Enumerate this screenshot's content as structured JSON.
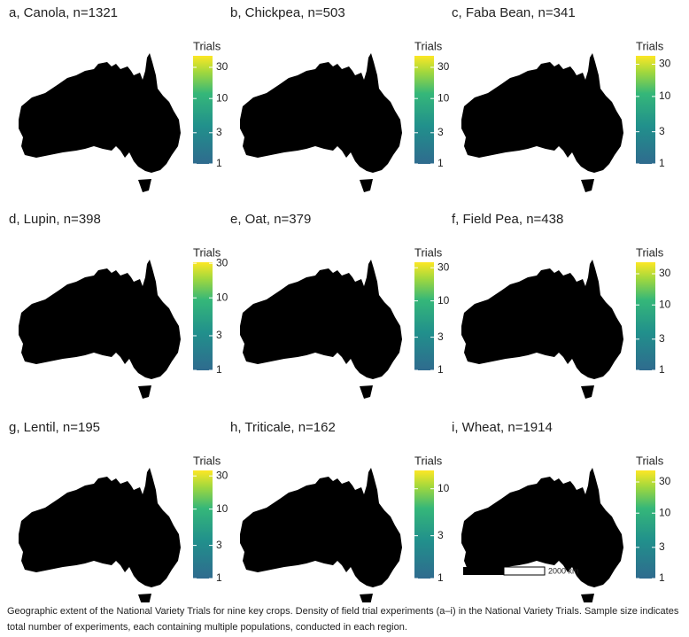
{
  "chart_data": [
    {
      "type": "map",
      "title": "a, Canola, n=1321",
      "legend_title": "Trials",
      "log_scale": true,
      "clim": [
        1,
        45
      ],
      "cticks": [
        1,
        3,
        10,
        30
      ]
    },
    {
      "type": "map",
      "title": "b, Chickpea, n=503",
      "legend_title": "Trials",
      "log_scale": true,
      "clim": [
        1,
        45
      ],
      "cticks": [
        1,
        3,
        10,
        30
      ]
    },
    {
      "type": "map",
      "title": "c, Faba Bean, n=341",
      "legend_title": "Trials",
      "log_scale": true,
      "clim": [
        1,
        40
      ],
      "cticks": [
        1,
        3,
        10,
        30
      ]
    },
    {
      "type": "map",
      "title": "d, Lupin, n=398",
      "legend_title": "Trials",
      "log_scale": true,
      "clim": [
        1,
        31
      ],
      "cticks": [
        1,
        3,
        10,
        30
      ]
    },
    {
      "type": "map",
      "title": "e, Oat, n=379",
      "legend_title": "Trials",
      "log_scale": true,
      "clim": [
        1,
        36
      ],
      "cticks": [
        1,
        3,
        10,
        30
      ]
    },
    {
      "type": "map",
      "title": "f, Field Pea, n=438",
      "legend_title": "Trials",
      "log_scale": true,
      "clim": [
        1,
        45
      ],
      "cticks": [
        1,
        3,
        10,
        30
      ]
    },
    {
      "type": "map",
      "title": "g, Lentil, n=195",
      "legend_title": "Trials",
      "log_scale": true,
      "clim": [
        1,
        36
      ],
      "cticks": [
        1,
        3,
        10,
        30
      ]
    },
    {
      "type": "map",
      "title": "h, Triticale, n=162",
      "legend_title": "Trials",
      "log_scale": true,
      "clim": [
        1,
        16
      ],
      "cticks": [
        1,
        3,
        10
      ]
    },
    {
      "type": "map",
      "title": "i, Wheat, n=1914",
      "legend_title": "Trials",
      "log_scale": true,
      "clim": [
        1,
        45
      ],
      "cticks": [
        1,
        3,
        10,
        30
      ],
      "scale_bar": "2000 km"
    }
  ],
  "caption": "Geographic extent of the National Variety Trials for nine key crops. Density of field trial experiments (a–i) in the National Variety Trials. Sample size indicates total number of experiments, each containing multiple populations, conducted in each region."
}
